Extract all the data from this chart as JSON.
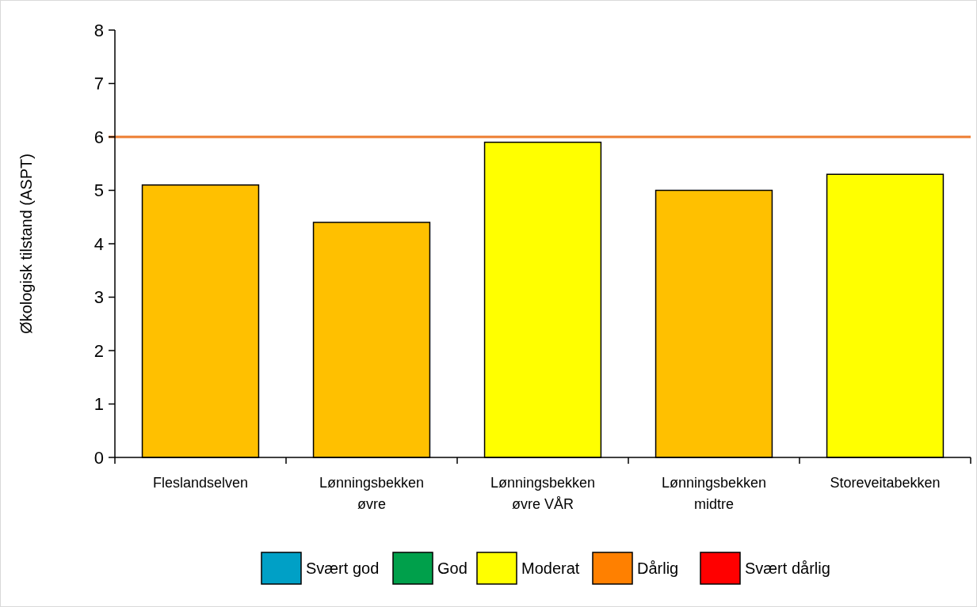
{
  "chart_data": {
    "type": "bar",
    "ylabel": "Økologisk tilstand (ASPT)",
    "categories": [
      "Fleslandselven",
      "Lønningsbekken øvre",
      "Lønningsbekken øvre VÅR",
      "Lønningsbekken midtre",
      "Storeveitabekken"
    ],
    "series": [
      {
        "values": [
          5.1,
          4.4,
          5.9,
          5.0,
          5.3
        ],
        "colors": [
          "#ffc000",
          "#ffc000",
          "#ffff00",
          "#ffc000",
          "#ffff00"
        ]
      },
      {
        "name": "Svært god",
        "color": "#00a0c6",
        "values": [
          null,
          null,
          null,
          null,
          null
        ]
      },
      {
        "name": "God",
        "color": "#00a04b",
        "values": [
          null,
          null,
          null,
          null,
          null
        ]
      },
      {
        "name": "Moderat",
        "color": "#ffff00",
        "values": [
          null,
          null,
          null,
          null,
          null
        ]
      },
      {
        "name": "Dårlig",
        "color": "#ff8000",
        "values": [
          null,
          null,
          null,
          null,
          null
        ]
      },
      {
        "name": "Svært dårlig",
        "color": "#ff0000",
        "values": [
          null,
          null,
          null,
          null,
          null
        ]
      }
    ],
    "ylim": [
      0,
      8
    ],
    "yticks": [
      0,
      1,
      2,
      3,
      4,
      5,
      6,
      7,
      8
    ],
    "ref_lines": [
      {
        "axis": "y",
        "value": 6,
        "color": "#ed7d31"
      }
    ],
    "legend": "bottom"
  }
}
